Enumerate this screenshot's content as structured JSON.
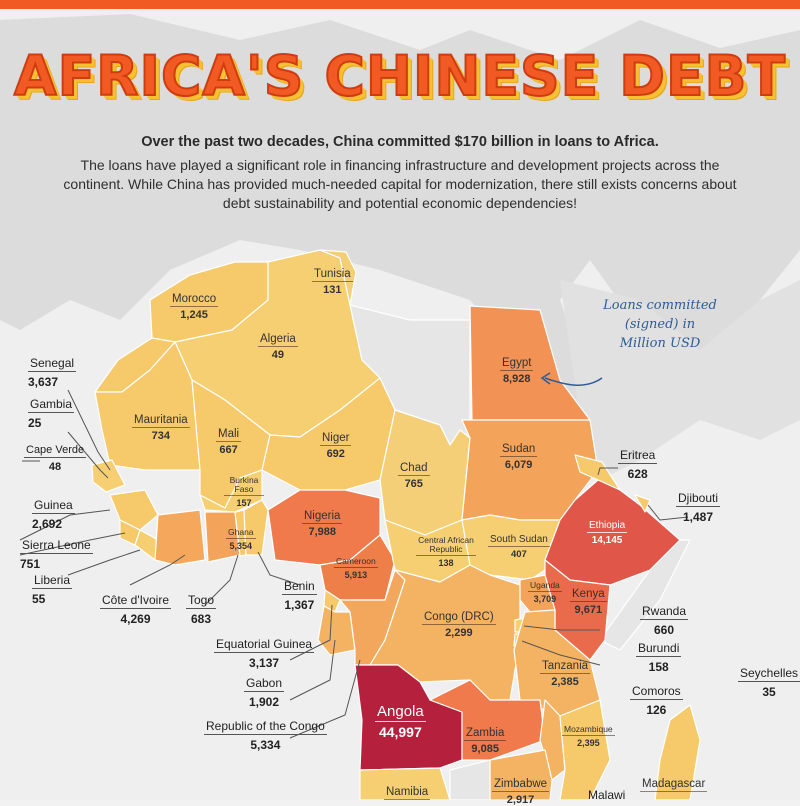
{
  "title": "AFRICA'S CHINESE DEBT",
  "subtitle": "Over the past two decades, China committed $170 billion in loans to Africa.",
  "intro": "The loans have played a significant role in financing infrastructure and development projects across the continent. While China has provided much-needed capital for modernization, there still exists concerns about debt sustainability and potential economic dependencies!",
  "note": "Loans committed (signed) in Million USD",
  "colors": {
    "accent": "#f15a22",
    "title_shadow": "#f6c232",
    "note": "#2b5d9a"
  },
  "countries": {
    "tunisia": {
      "name": "Tunisia",
      "value": "131"
    },
    "morocco": {
      "name": "Morocco",
      "value": "1,245"
    },
    "algeria": {
      "name": "Algeria",
      "value": "49"
    },
    "egypt": {
      "name": "Egypt",
      "value": "8,928"
    },
    "mauritania": {
      "name": "Mauritania",
      "value": "734"
    },
    "mali": {
      "name": "Mali",
      "value": "667"
    },
    "niger": {
      "name": "Niger",
      "value": "692"
    },
    "chad": {
      "name": "Chad",
      "value": "765"
    },
    "sudan": {
      "name": "Sudan",
      "value": "6,079"
    },
    "burkina_faso": {
      "name": "Burkina Faso",
      "value": "157"
    },
    "nigeria": {
      "name": "Nigeria",
      "value": "7,988"
    },
    "ghana": {
      "name": "Ghana",
      "value": "5,354"
    },
    "car": {
      "name": "Central African Republic",
      "value": "138"
    },
    "south_sudan": {
      "name": "South Sudan",
      "value": "407"
    },
    "ethiopia": {
      "name": "Ethiopia",
      "value": "14,145"
    },
    "cameroon": {
      "name": "Cameroon",
      "value": "5,913"
    },
    "uganda": {
      "name": "Uganda",
      "value": "3,709"
    },
    "kenya": {
      "name": "Kenya",
      "value": "9,671"
    },
    "drc": {
      "name": "Congo (DRC)",
      "value": "2,299"
    },
    "tanzania": {
      "name": "Tanzania",
      "value": "2,385"
    },
    "angola": {
      "name": "Angola",
      "value": "44,997"
    },
    "zambia": {
      "name": "Zambia",
      "value": "9,085"
    },
    "mozambique": {
      "name": "Mozambique",
      "value": "2,395"
    },
    "zimbabwe": {
      "name": "Zimbabwe",
      "value": "2,917"
    },
    "namibia": {
      "name": "Namibia",
      "value": ""
    },
    "malawi": {
      "name": "Malawi",
      "value": ""
    },
    "madagascar": {
      "name": "Madagascar",
      "value": ""
    },
    "senegal": {
      "name": "Senegal",
      "value": "3,637"
    },
    "gambia": {
      "name": "Gambia",
      "value": "25"
    },
    "cape_verde": {
      "name": "Cape Verde",
      "value": "48"
    },
    "guinea": {
      "name": "Guinea",
      "value": "2,692"
    },
    "sierra_leone": {
      "name": "Sierra Leone",
      "value": "751"
    },
    "liberia": {
      "name": "Liberia",
      "value": "55"
    },
    "cote_divoire": {
      "name": "Côte d'Ivoire",
      "value": "4,269"
    },
    "togo": {
      "name": "Togo",
      "value": "683"
    },
    "benin": {
      "name": "Benin",
      "value": "1,367"
    },
    "equatorial_guinea": {
      "name": "Equatorial Guinea",
      "value": "3,137"
    },
    "gabon": {
      "name": "Gabon",
      "value": "1,902"
    },
    "republic_congo": {
      "name": "Republic of the Congo",
      "value": "5,334"
    },
    "eritrea": {
      "name": "Eritrea",
      "value": "628"
    },
    "djibouti": {
      "name": "Djibouti",
      "value": "1,487"
    },
    "rwanda": {
      "name": "Rwanda",
      "value": "660"
    },
    "burundi": {
      "name": "Burundi",
      "value": "158"
    },
    "comoros": {
      "name": "Comoros",
      "value": "126"
    },
    "seychelles": {
      "name": "Seychelles",
      "value": "35"
    }
  }
}
